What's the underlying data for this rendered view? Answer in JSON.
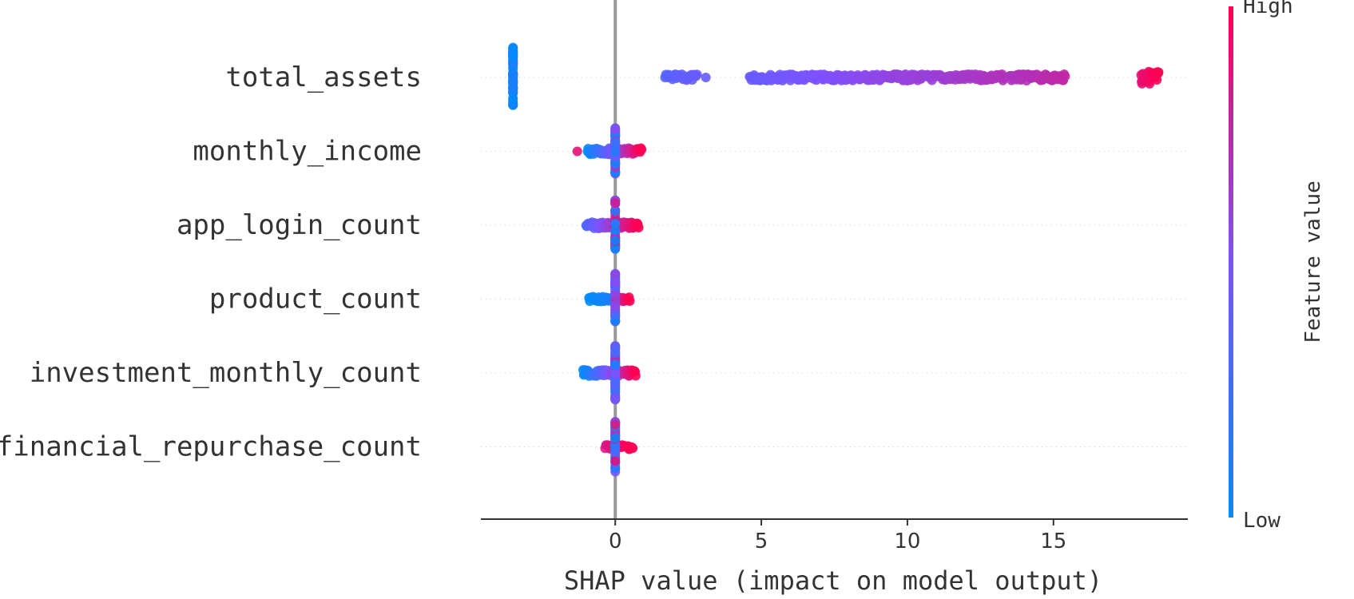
{
  "chart_data": {
    "type": "scatter",
    "subtype": "shap-beeswarm",
    "title": "",
    "xlabel": "SHAP value (impact on model output)",
    "xlim": [
      -4.6,
      19.6
    ],
    "xticks": [
      0,
      5,
      10,
      15
    ],
    "xtick_labels": [
      "0",
      "5",
      "10",
      "15"
    ],
    "features": [
      {
        "name": "total_assets",
        "clusters": [
          {
            "x0": -3.5,
            "x1": -3.5,
            "spread": 38,
            "v0": 0.0,
            "v1": 0.12,
            "n": 60
          },
          {
            "x0": 1.7,
            "x1": 2.8,
            "spread": 4,
            "v0": 0.35,
            "v1": 0.42,
            "n": 35
          },
          {
            "x0": 3.1,
            "x1": 3.1,
            "spread": 0,
            "v0": 0.4,
            "v1": 0.4,
            "n": 1
          },
          {
            "x0": 4.6,
            "x1": 10.5,
            "spread": 4,
            "v0": 0.42,
            "v1": 0.62,
            "n": 200
          },
          {
            "x0": 10.6,
            "x1": 13.3,
            "spread": 4,
            "v0": 0.6,
            "v1": 0.7,
            "n": 90
          },
          {
            "x0": 13.5,
            "x1": 15.4,
            "spread": 4,
            "v0": 0.68,
            "v1": 0.76,
            "n": 60
          },
          {
            "x0": 18.0,
            "x1": 18.6,
            "spread": 8,
            "v0": 0.9,
            "v1": 1.0,
            "n": 40
          }
        ]
      },
      {
        "name": "monthly_income",
        "clusters": [
          {
            "x0": -1.3,
            "x1": -1.3,
            "spread": 0,
            "v0": 0.9,
            "v1": 0.9,
            "n": 1
          },
          {
            "x0": -0.95,
            "x1": 0.9,
            "spread": 4,
            "v0": 0.0,
            "v1": 1.0,
            "n": 80
          },
          {
            "x0": 0.0,
            "x1": 0.0,
            "spread": 30,
            "v0": 0.0,
            "v1": 0.7,
            "n": 50
          }
        ]
      },
      {
        "name": "app_login_count",
        "clusters": [
          {
            "x0": -1.0,
            "x1": 0.8,
            "spread": 4,
            "v0": 0.3,
            "v1": 1.0,
            "n": 80
          },
          {
            "x0": 0.0,
            "x1": 0.0,
            "spread": 32,
            "v0": 0.0,
            "v1": 1.0,
            "n": 50
          }
        ]
      },
      {
        "name": "product_count",
        "clusters": [
          {
            "x0": -0.9,
            "x1": -0.1,
            "spread": 3,
            "v0": 0.0,
            "v1": 0.1,
            "n": 30
          },
          {
            "x0": 0.0,
            "x1": 0.5,
            "spread": 3,
            "v0": 0.7,
            "v1": 1.0,
            "n": 20
          },
          {
            "x0": 0.0,
            "x1": 0.0,
            "spread": 32,
            "v0": 0.0,
            "v1": 0.75,
            "n": 50
          }
        ]
      },
      {
        "name": "investment_monthly_count",
        "clusters": [
          {
            "x0": -1.1,
            "x1": 0.7,
            "spread": 4,
            "v0": 0.0,
            "v1": 1.0,
            "n": 80
          },
          {
            "x0": 0.0,
            "x1": 0.0,
            "spread": 34,
            "v0": 0.0,
            "v1": 0.9,
            "n": 60
          }
        ]
      },
      {
        "name": "financial_repurchase_count",
        "clusters": [
          {
            "x0": -0.35,
            "x1": 0.6,
            "spread": 3,
            "v0": 0.85,
            "v1": 1.0,
            "n": 30
          },
          {
            "x0": 0.0,
            "x1": 0.0,
            "spread": 32,
            "v0": 0.0,
            "v1": 0.9,
            "n": 50
          }
        ]
      }
    ],
    "colorbar": {
      "label": "Feature value",
      "high_label": "High",
      "low_label": "Low",
      "low_color": "#008bfb",
      "mid_color": "#7c52ff",
      "high_color": "#ff0052"
    },
    "zero_line_color": "#999999",
    "grid": false,
    "legend": "right colorbar"
  }
}
